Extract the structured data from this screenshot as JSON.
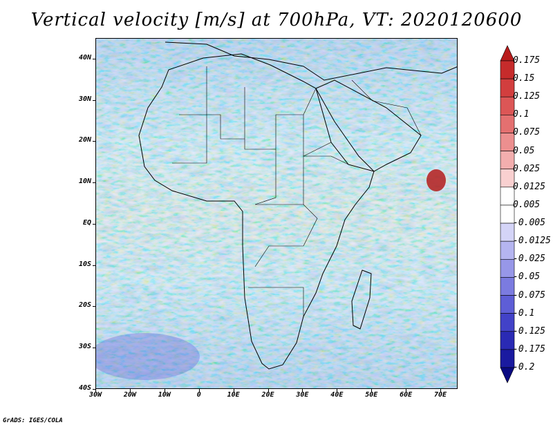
{
  "title": "Vertical velocity [m/s] at 700hPa, VT: 2020120600",
  "map": {
    "lon_range": [
      -30,
      75
    ],
    "lat_range": [
      -40,
      45
    ],
    "lat_labels": [
      "40N",
      "30N",
      "20N",
      "10N",
      "EQ",
      "10S",
      "20S",
      "30S",
      "40S"
    ],
    "lon_labels": [
      "30W",
      "20W",
      "10W",
      "0",
      "10E",
      "20E",
      "30E",
      "40E",
      "50E",
      "60E",
      "70E"
    ]
  },
  "colorbar": {
    "labels": [
      "0.175",
      "0.15",
      "0.125",
      "0.1",
      "0.075",
      "0.05",
      "0.025",
      "0.0125",
      "0.005",
      "-0.005",
      "-0.0125",
      "-0.025",
      "-0.05",
      "-0.075",
      "-0.1",
      "-0.125",
      "-0.175",
      "-0.2"
    ],
    "colors": [
      "#b81c1c",
      "#c62b2b",
      "#d23e3e",
      "#dc5656",
      "#e47070",
      "#ec8f8f",
      "#f3aeae",
      "#f9d0d0",
      "#ffffff",
      "#ffffff",
      "#d4d4f7",
      "#b5b5f0",
      "#9797e8",
      "#7b7be0",
      "#5e5ed6",
      "#4242c8",
      "#2a2ab4",
      "#1a1aa0",
      "#0a0a82"
    ]
  },
  "footer": "GrADS: IGES/COLA"
}
